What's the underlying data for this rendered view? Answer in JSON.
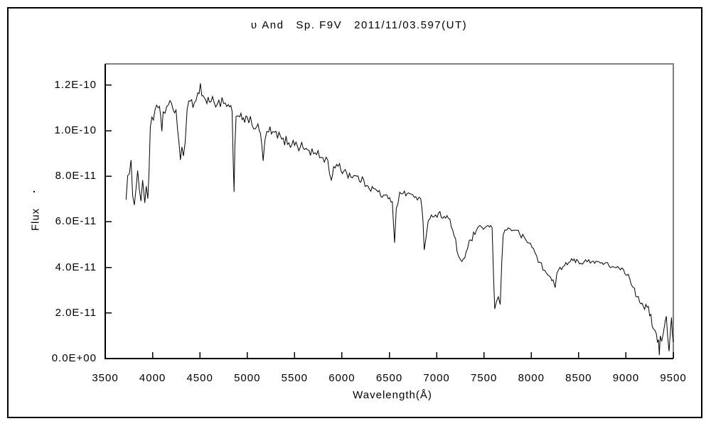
{
  "window": {
    "background": "#ffffff",
    "border_color": "#000000"
  },
  "chart": {
    "title": "υ And   Sp. F9V   2011/11/03.597(UT)",
    "xlabel": "Wavelength(Å)",
    "ylabel": "Flux"
  },
  "chart_data": {
    "type": "line",
    "title": "υ And   Sp. F9V   2011/11/03.597(UT)",
    "xlabel": "Wavelength(Å)",
    "ylabel": "Flux",
    "line_color": "#000000",
    "axis_color": "#000000",
    "frame_topright_color": "#808080",
    "grid": false,
    "legend": false,
    "xlim": [
      3500,
      9500
    ],
    "ylim_flux_e11": [
      0,
      12.9
    ],
    "x_ticks": [
      3500,
      4000,
      4500,
      5000,
      5500,
      6000,
      6500,
      7000,
      7500,
      8000,
      8500,
      9000,
      9500
    ],
    "x_tick_labels": [
      "3500",
      "4000",
      "4500",
      "5000",
      "5500",
      "6000",
      "6500",
      "7000",
      "7500",
      "8000",
      "8500",
      "9000",
      "9500"
    ],
    "y_tick_values_e11": [
      0,
      2,
      4,
      6,
      8,
      10,
      12
    ],
    "y_tick_labels": [
      "0.0E+00",
      "2.0E-11",
      "4.0E-11",
      "6.0E-11",
      "8.0E-11",
      "1.0E-10",
      "1.2E-10"
    ],
    "flux_unit": "erg s-1 cm-2 A-1 implied by E-notation labels, values stored here in 1e-11 units",
    "noise_seed": 1234,
    "sample_step_angstrom": 16,
    "anchors_lambda_flux_noise": [
      [
        3720,
        7.4,
        1.0
      ],
      [
        3755,
        7.8,
        1.1
      ],
      [
        3790,
        7.5,
        1.15
      ],
      [
        3825,
        7.7,
        1.1
      ],
      [
        3860,
        7.5,
        1.05
      ],
      [
        3895,
        7.8,
        0.95
      ],
      [
        3918,
        6.9,
        0.55
      ],
      [
        3933,
        7.3,
        0.75
      ],
      [
        3950,
        7.0,
        0.55
      ],
      [
        3963,
        8.3,
        0.45
      ],
      [
        3976,
        10.15,
        0.3
      ],
      [
        3992,
        10.6,
        0.28
      ],
      [
        4025,
        10.8,
        0.3
      ],
      [
        4060,
        11.0,
        0.3
      ],
      [
        4085,
        10.6,
        0.25
      ],
      [
        4098,
        10.0,
        0.15
      ],
      [
        4112,
        10.8,
        0.25
      ],
      [
        4150,
        11.05,
        0.3
      ],
      [
        4200,
        11.1,
        0.3
      ],
      [
        4248,
        10.9,
        0.28
      ],
      [
        4280,
        9.4,
        0.3
      ],
      [
        4294,
        8.65,
        0.2
      ],
      [
        4310,
        9.3,
        0.28
      ],
      [
        4326,
        8.9,
        0.22
      ],
      [
        4345,
        9.6,
        0.25
      ],
      [
        4365,
        10.9,
        0.3
      ],
      [
        4400,
        11.2,
        0.3
      ],
      [
        4440,
        11.3,
        0.32
      ],
      [
        4478,
        11.6,
        0.3
      ],
      [
        4505,
        12.05,
        0.15
      ],
      [
        4520,
        11.6,
        0.3
      ],
      [
        4560,
        11.35,
        0.33
      ],
      [
        4600,
        11.3,
        0.33
      ],
      [
        4650,
        11.25,
        0.33
      ],
      [
        4700,
        11.3,
        0.3
      ],
      [
        4750,
        11.15,
        0.3
      ],
      [
        4800,
        11.05,
        0.28
      ],
      [
        4840,
        10.9,
        0.22
      ],
      [
        4853,
        8.4,
        0.25
      ],
      [
        4861,
        7.3,
        0.1
      ],
      [
        4869,
        9.2,
        0.25
      ],
      [
        4882,
        10.55,
        0.25
      ],
      [
        4920,
        10.7,
        0.28
      ],
      [
        4960,
        10.6,
        0.28
      ],
      [
        5000,
        10.5,
        0.28
      ],
      [
        5050,
        10.3,
        0.28
      ],
      [
        5100,
        10.15,
        0.26
      ],
      [
        5140,
        9.9,
        0.24
      ],
      [
        5168,
        8.65,
        0.12
      ],
      [
        5186,
        9.6,
        0.22
      ],
      [
        5225,
        9.95,
        0.26
      ],
      [
        5270,
        9.9,
        0.26
      ],
      [
        5320,
        9.75,
        0.26
      ],
      [
        5380,
        9.6,
        0.26
      ],
      [
        5440,
        9.5,
        0.25
      ],
      [
        5500,
        9.4,
        0.24
      ],
      [
        5560,
        9.3,
        0.24
      ],
      [
        5620,
        9.2,
        0.24
      ],
      [
        5700,
        9.0,
        0.23
      ],
      [
        5780,
        8.85,
        0.22
      ],
      [
        5850,
        8.7,
        0.2
      ],
      [
        5888,
        7.8,
        0.12
      ],
      [
        5912,
        8.45,
        0.18
      ],
      [
        5960,
        8.4,
        0.2
      ],
      [
        6020,
        8.25,
        0.22
      ],
      [
        6080,
        8.1,
        0.22
      ],
      [
        6140,
        8.0,
        0.22
      ],
      [
        6200,
        7.8,
        0.22
      ],
      [
        6260,
        7.65,
        0.2
      ],
      [
        6320,
        7.5,
        0.2
      ],
      [
        6380,
        7.3,
        0.2
      ],
      [
        6440,
        7.15,
        0.18
      ],
      [
        6490,
        7.0,
        0.16
      ],
      [
        6532,
        6.9,
        0.12
      ],
      [
        6556,
        5.1,
        0.08
      ],
      [
        6574,
        6.6,
        0.14
      ],
      [
        6610,
        7.25,
        0.16
      ],
      [
        6660,
        7.3,
        0.16
      ],
      [
        6720,
        7.2,
        0.16
      ],
      [
        6780,
        7.1,
        0.15
      ],
      [
        6832,
        7.0,
        0.12
      ],
      [
        6856,
        6.0,
        0.18
      ],
      [
        6869,
        4.75,
        0.1
      ],
      [
        6886,
        5.3,
        0.18
      ],
      [
        6912,
        6.1,
        0.14
      ],
      [
        6960,
        6.25,
        0.14
      ],
      [
        7020,
        6.35,
        0.14
      ],
      [
        7080,
        6.25,
        0.14
      ],
      [
        7140,
        6.1,
        0.14
      ],
      [
        7185,
        5.35,
        0.18
      ],
      [
        7232,
        4.5,
        0.18
      ],
      [
        7268,
        4.25,
        0.16
      ],
      [
        7312,
        4.65,
        0.18
      ],
      [
        7360,
        5.2,
        0.16
      ],
      [
        7420,
        5.6,
        0.14
      ],
      [
        7475,
        5.75,
        0.13
      ],
      [
        7530,
        5.8,
        0.13
      ],
      [
        7586,
        5.75,
        0.08
      ],
      [
        7601,
        3.6,
        0.12
      ],
      [
        7614,
        2.2,
        0.1
      ],
      [
        7632,
        2.5,
        0.22
      ],
      [
        7652,
        2.65,
        0.28
      ],
      [
        7672,
        2.4,
        0.22
      ],
      [
        7688,
        4.3,
        0.3
      ],
      [
        7703,
        5.45,
        0.14
      ],
      [
        7740,
        5.65,
        0.13
      ],
      [
        7775,
        5.7,
        0.13
      ],
      [
        7810,
        5.65,
        0.13
      ],
      [
        7845,
        5.6,
        0.13
      ],
      [
        7880,
        5.45,
        0.13
      ],
      [
        7940,
        5.2,
        0.14
      ],
      [
        7990,
        5.05,
        0.14
      ],
      [
        8040,
        4.65,
        0.15
      ],
      [
        8090,
        4.2,
        0.16
      ],
      [
        8140,
        3.85,
        0.16
      ],
      [
        8190,
        3.6,
        0.14
      ],
      [
        8230,
        3.5,
        0.14
      ],
      [
        8252,
        3.1,
        0.07
      ],
      [
        8270,
        3.75,
        0.14
      ],
      [
        8320,
        3.95,
        0.14
      ],
      [
        8380,
        4.15,
        0.13
      ],
      [
        8440,
        4.3,
        0.13
      ],
      [
        8480,
        4.35,
        0.13
      ],
      [
        8540,
        4.15,
        0.13
      ],
      [
        8590,
        4.25,
        0.12
      ],
      [
        8640,
        4.3,
        0.12
      ],
      [
        8700,
        4.25,
        0.12
      ],
      [
        8760,
        4.15,
        0.12
      ],
      [
        8820,
        4.1,
        0.12
      ],
      [
        8880,
        4.0,
        0.12
      ],
      [
        8940,
        3.9,
        0.13
      ],
      [
        8990,
        3.75,
        0.15
      ],
      [
        9040,
        3.45,
        0.2
      ],
      [
        9090,
        3.1,
        0.24
      ],
      [
        9130,
        2.7,
        0.25
      ],
      [
        9170,
        2.5,
        0.27
      ],
      [
        9210,
        2.3,
        0.27
      ],
      [
        9250,
        1.9,
        0.28
      ],
      [
        9290,
        1.4,
        0.3
      ],
      [
        9320,
        1.0,
        0.32
      ],
      [
        9344,
        0.9,
        0.28
      ],
      [
        9352,
        0.15,
        0.05
      ],
      [
        9362,
        1.0,
        0.28
      ],
      [
        9392,
        1.1,
        0.32
      ],
      [
        9415,
        1.6,
        0.28
      ],
      [
        9426,
        1.9,
        0.15
      ],
      [
        9440,
        1.0,
        0.28
      ],
      [
        9455,
        0.35,
        0.12
      ],
      [
        9470,
        1.2,
        0.25
      ],
      [
        9481,
        1.75,
        0.15
      ],
      [
        9491,
        1.0,
        0.22
      ],
      [
        9500,
        0.7,
        0.15
      ]
    ]
  }
}
